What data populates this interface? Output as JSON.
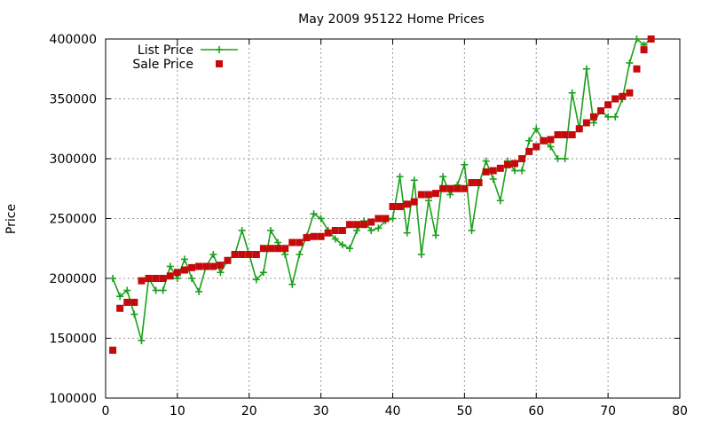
{
  "chart_data": {
    "type": "line",
    "title": "May 2009 95122 Home Prices",
    "xlabel": "",
    "ylabel": "Price",
    "xlim": [
      0,
      80
    ],
    "ylim": [
      100000,
      400000
    ],
    "xticks": [
      0,
      10,
      20,
      30,
      40,
      50,
      60,
      70,
      80
    ],
    "yticks": [
      100000,
      150000,
      200000,
      250000,
      300000,
      350000,
      400000
    ],
    "grid": true,
    "legend_position": "top-left",
    "series": [
      {
        "name": "List Price",
        "style": "line-plus",
        "color": "#1aa01a",
        "x": [
          1,
          2,
          3,
          4,
          5,
          6,
          7,
          8,
          9,
          10,
          11,
          12,
          13,
          14,
          15,
          16,
          17,
          18,
          19,
          20,
          21,
          22,
          23,
          24,
          25,
          26,
          27,
          28,
          29,
          30,
          31,
          32,
          33,
          34,
          35,
          36,
          37,
          38,
          39,
          40,
          41,
          42,
          43,
          44,
          45,
          46,
          47,
          48,
          49,
          50,
          51,
          52,
          53,
          54,
          55,
          56,
          57,
          58,
          59,
          60,
          61,
          62,
          63,
          64,
          65,
          66,
          67,
          68,
          69,
          70,
          71,
          72,
          73,
          74,
          75,
          76
        ],
        "y": [
          200000,
          185000,
          190000,
          170000,
          148000,
          200000,
          190000,
          190000,
          210000,
          200000,
          216000,
          200000,
          189000,
          210000,
          220000,
          205000,
          215000,
          220000,
          240000,
          220000,
          199000,
          205000,
          240000,
          230000,
          220000,
          195000,
          220000,
          235000,
          254000,
          250000,
          240000,
          233000,
          228000,
          225000,
          240000,
          248000,
          240000,
          242000,
          248000,
          250000,
          285000,
          238000,
          282000,
          220000,
          265000,
          236000,
          285000,
          270000,
          278000,
          295000,
          240000,
          278000,
          298000,
          283000,
          265000,
          298000,
          290000,
          290000,
          315000,
          325000,
          315000,
          310000,
          300000,
          300000,
          355000,
          325000,
          375000,
          330000,
          340000,
          335000,
          335000,
          350000,
          380000,
          400000,
          395000,
          400000
        ]
      },
      {
        "name": "Sale Price",
        "style": "square-markers",
        "color": "#c40a0a",
        "x": [
          1,
          2,
          3,
          4,
          5,
          6,
          7,
          8,
          9,
          10,
          11,
          12,
          13,
          14,
          15,
          16,
          17,
          18,
          19,
          20,
          21,
          22,
          23,
          24,
          25,
          26,
          27,
          28,
          29,
          30,
          31,
          32,
          33,
          34,
          35,
          36,
          37,
          38,
          39,
          40,
          41,
          42,
          43,
          44,
          45,
          46,
          47,
          48,
          49,
          50,
          51,
          52,
          53,
          54,
          55,
          56,
          57,
          58,
          59,
          60,
          61,
          62,
          63,
          64,
          65,
          66,
          67,
          68,
          69,
          70,
          71,
          72,
          73,
          74,
          75,
          76
        ],
        "y": [
          140000,
          175000,
          180000,
          180000,
          198000,
          200000,
          200000,
          200000,
          202000,
          205000,
          207000,
          209000,
          210000,
          210000,
          210000,
          211000,
          215000,
          220000,
          220000,
          220000,
          220000,
          225000,
          225000,
          225000,
          225000,
          230000,
          230000,
          234000,
          235000,
          235000,
          238000,
          240000,
          240000,
          245000,
          245000,
          245000,
          247000,
          250000,
          250000,
          260000,
          260000,
          262000,
          264000,
          270000,
          270000,
          271000,
          275000,
          275000,
          275000,
          275000,
          280000,
          280000,
          289000,
          290000,
          292000,
          295000,
          296000,
          300000,
          306000,
          310000,
          315000,
          316000,
          320000,
          320000,
          320000,
          325000,
          330000,
          335000,
          340000,
          345000,
          350000,
          352000,
          355000,
          375000,
          391000,
          400000
        ]
      }
    ]
  }
}
